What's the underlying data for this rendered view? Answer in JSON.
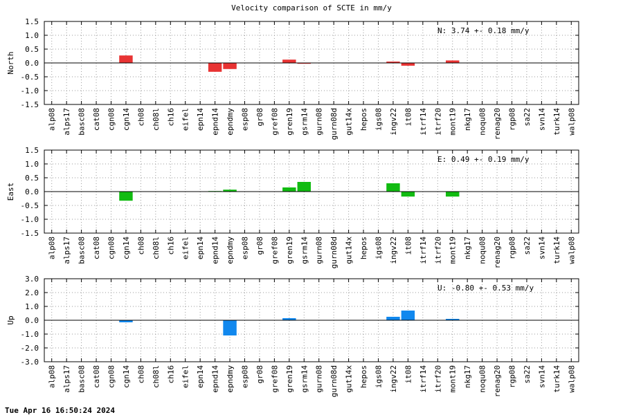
{
  "title": "Velocity comparison of SCTE in mm/y",
  "timestamp": "Tue Apr 16 16:50:24 2024",
  "chart_data": [
    {
      "type": "bar",
      "ylabel": "North",
      "ylim": [
        -1.5,
        1.5
      ],
      "yticks": [
        "1.5",
        "1.0",
        "0.5",
        "0.0",
        "-0.5",
        "-1.0",
        "-1.5"
      ],
      "annotation": "N:   3.74 +-  0.18 mm/y",
      "color": "#e83333",
      "grid": true,
      "categories": [
        "alp08",
        "alps17",
        "basc08",
        "cat08",
        "cgn08",
        "cgn14",
        "ch08",
        "ch08l",
        "ch16",
        "eifel",
        "epn14",
        "epnd14",
        "epndmy",
        "esp08",
        "gr08",
        "gref08",
        "gren19",
        "gsrm14",
        "gurn08",
        "gurn08d",
        "gut14x",
        "hepos",
        "igs08",
        "ingv22",
        "it08",
        "itrf14",
        "itrf20",
        "mont19",
        "nkg17",
        "noqu08",
        "renag20",
        "rgp08",
        "sa22",
        "svn14",
        "turk14",
        "walp08"
      ],
      "values": [
        0,
        0,
        0,
        0,
        0,
        0.27,
        0,
        0,
        0,
        0,
        0,
        -0.32,
        -0.22,
        0,
        0,
        0,
        0.12,
        -0.03,
        0,
        0,
        0,
        0,
        0,
        0.05,
        -0.1,
        0,
        0,
        0.09,
        0,
        0,
        0,
        0,
        0,
        0,
        0,
        0
      ]
    },
    {
      "type": "bar",
      "ylabel": "East",
      "ylim": [
        -1.5,
        1.5
      ],
      "yticks": [
        "1.5",
        "1.0",
        "0.5",
        "0.0",
        "-0.5",
        "-1.0",
        "-1.5"
      ],
      "annotation": "E:   0.49 +-  0.19 mm/y",
      "color": "#11bb11",
      "grid": true,
      "categories": [
        "alp08",
        "alps17",
        "basc08",
        "cat08",
        "cgn08",
        "cgn14",
        "ch08",
        "ch08l",
        "ch16",
        "eifel",
        "epn14",
        "epnd14",
        "epndmy",
        "esp08",
        "gr08",
        "gref08",
        "gren19",
        "gsrm14",
        "gurn08",
        "gurn08d",
        "gut14x",
        "hepos",
        "igs08",
        "ingv22",
        "it08",
        "itrf14",
        "itrf20",
        "mont19",
        "nkg17",
        "noqu08",
        "renag20",
        "rgp08",
        "sa22",
        "svn14",
        "turk14",
        "walp08"
      ],
      "values": [
        0,
        0,
        0,
        0,
        0,
        -0.33,
        0,
        0,
        0,
        0,
        0,
        0.02,
        0.07,
        0,
        0,
        0,
        0.15,
        0.35,
        0,
        0,
        0,
        0,
        0,
        0.3,
        -0.18,
        0,
        0,
        -0.18,
        0,
        0,
        0,
        0,
        0,
        0,
        0,
        0
      ]
    },
    {
      "type": "bar",
      "ylabel": "Up",
      "ylim": [
        -3.0,
        3.0
      ],
      "yticks": [
        "3.0",
        "2.0",
        "1.0",
        "0.0",
        "-1.0",
        "-2.0",
        "-3.0"
      ],
      "annotation": "U:  -0.80 +-  0.53 mm/y",
      "color": "#1188ee",
      "grid": true,
      "categories": [
        "alp08",
        "alps17",
        "basc08",
        "cat08",
        "cgn08",
        "cgn14",
        "ch08",
        "ch08l",
        "ch16",
        "eifel",
        "epn14",
        "epnd14",
        "epndmy",
        "esp08",
        "gr08",
        "gref08",
        "gren19",
        "gsrm14",
        "gurn08",
        "gurn08d",
        "gut14x",
        "hepos",
        "igs08",
        "ingv22",
        "it08",
        "itrf14",
        "itrf20",
        "mont19",
        "nkg17",
        "noqu08",
        "renag20",
        "rgp08",
        "sa22",
        "svn14",
        "turk14",
        "walp08"
      ],
      "values": [
        0,
        0,
        0,
        0,
        0,
        -0.15,
        0,
        0,
        0,
        0,
        0,
        0,
        -1.1,
        0,
        0,
        0,
        0.15,
        0,
        0,
        0,
        0,
        0,
        0,
        0.25,
        0.7,
        0,
        0,
        0.1,
        0,
        0,
        0,
        0,
        0,
        0,
        0,
        0
      ]
    }
  ]
}
